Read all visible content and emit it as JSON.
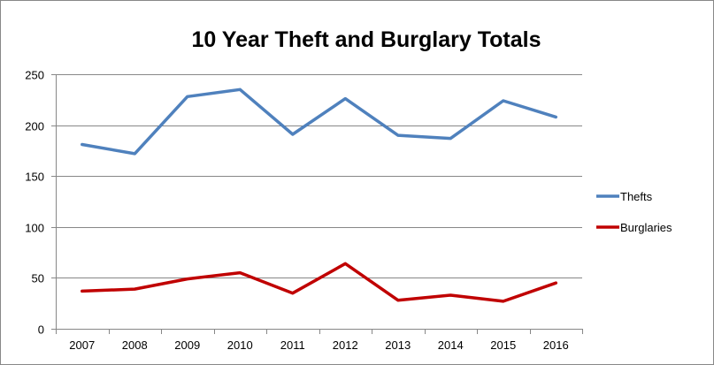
{
  "chart_data": {
    "type": "line",
    "title": "10 Year Theft and Burglary Totals",
    "xlabel": "",
    "ylabel": "",
    "categories": [
      "2007",
      "2008",
      "2009",
      "2010",
      "2011",
      "2012",
      "2013",
      "2014",
      "2015",
      "2016"
    ],
    "ylim": [
      0,
      250
    ],
    "yticks": [
      0,
      50,
      100,
      150,
      200,
      250
    ],
    "grid": true,
    "legend_position": "right",
    "series": [
      {
        "name": "Thefts",
        "color": "#4F81BD",
        "values": [
          181,
          172,
          228,
          235,
          191,
          226,
          190,
          187,
          224,
          208
        ]
      },
      {
        "name": "Burglaries",
        "color": "#C00000",
        "values": [
          37,
          39,
          49,
          55,
          35,
          64,
          28,
          33,
          27,
          45
        ]
      }
    ]
  }
}
